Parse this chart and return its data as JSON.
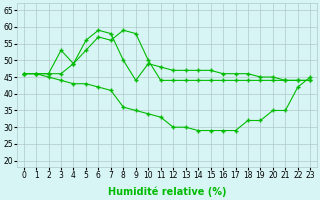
{
  "line1_x": [
    0,
    1,
    2,
    3,
    4,
    5,
    6,
    7,
    8,
    9,
    10,
    11,
    12,
    13,
    14,
    15,
    16,
    17,
    18,
    19,
    20,
    21,
    22,
    23
  ],
  "line1_y": [
    46,
    46,
    46,
    53,
    49,
    56,
    59,
    58,
    50,
    44,
    49,
    48,
    47,
    47,
    47,
    47,
    46,
    46,
    46,
    45,
    45,
    44,
    44,
    44
  ],
  "line2_x": [
    0,
    1,
    2,
    3,
    4,
    5,
    6,
    7,
    8,
    9,
    10,
    11,
    12,
    13,
    14,
    15,
    16,
    17,
    18,
    19,
    20,
    21,
    22,
    23
  ],
  "line2_y": [
    46,
    46,
    46,
    46,
    49,
    53,
    57,
    56,
    59,
    58,
    50,
    44,
    44,
    44,
    44,
    44,
    44,
    44,
    44,
    44,
    44,
    44,
    44,
    44
  ],
  "line3_x": [
    0,
    1,
    2,
    3,
    4,
    5,
    6,
    7,
    8,
    9,
    10,
    11,
    12,
    13,
    14,
    15,
    16,
    17,
    18,
    19,
    20,
    21,
    22,
    23
  ],
  "line3_y": [
    46,
    46,
    45,
    44,
    43,
    43,
    42,
    41,
    36,
    35,
    34,
    33,
    30,
    30,
    29,
    29,
    29,
    29,
    32,
    32,
    35,
    35,
    42,
    45
  ],
  "line_color": "#00bb00",
  "bg_color": "#d8f5f5",
  "grid_color": "#b0c8c8",
  "grid_color_major": "#c0d0d0",
  "xlabel": "Humidité relative (%)",
  "xlim": [
    -0.5,
    23.5
  ],
  "ylim": [
    18,
    67
  ],
  "yticks": [
    20,
    25,
    30,
    35,
    40,
    45,
    50,
    55,
    60,
    65
  ],
  "xticks": [
    0,
    1,
    2,
    3,
    4,
    5,
    6,
    7,
    8,
    9,
    10,
    11,
    12,
    13,
    14,
    15,
    16,
    17,
    18,
    19,
    20,
    21,
    22,
    23
  ],
  "marker": "+",
  "markersize": 3.5,
  "linewidth": 0.8,
  "xlabel_fontsize": 7,
  "tick_fontsize": 5.5
}
